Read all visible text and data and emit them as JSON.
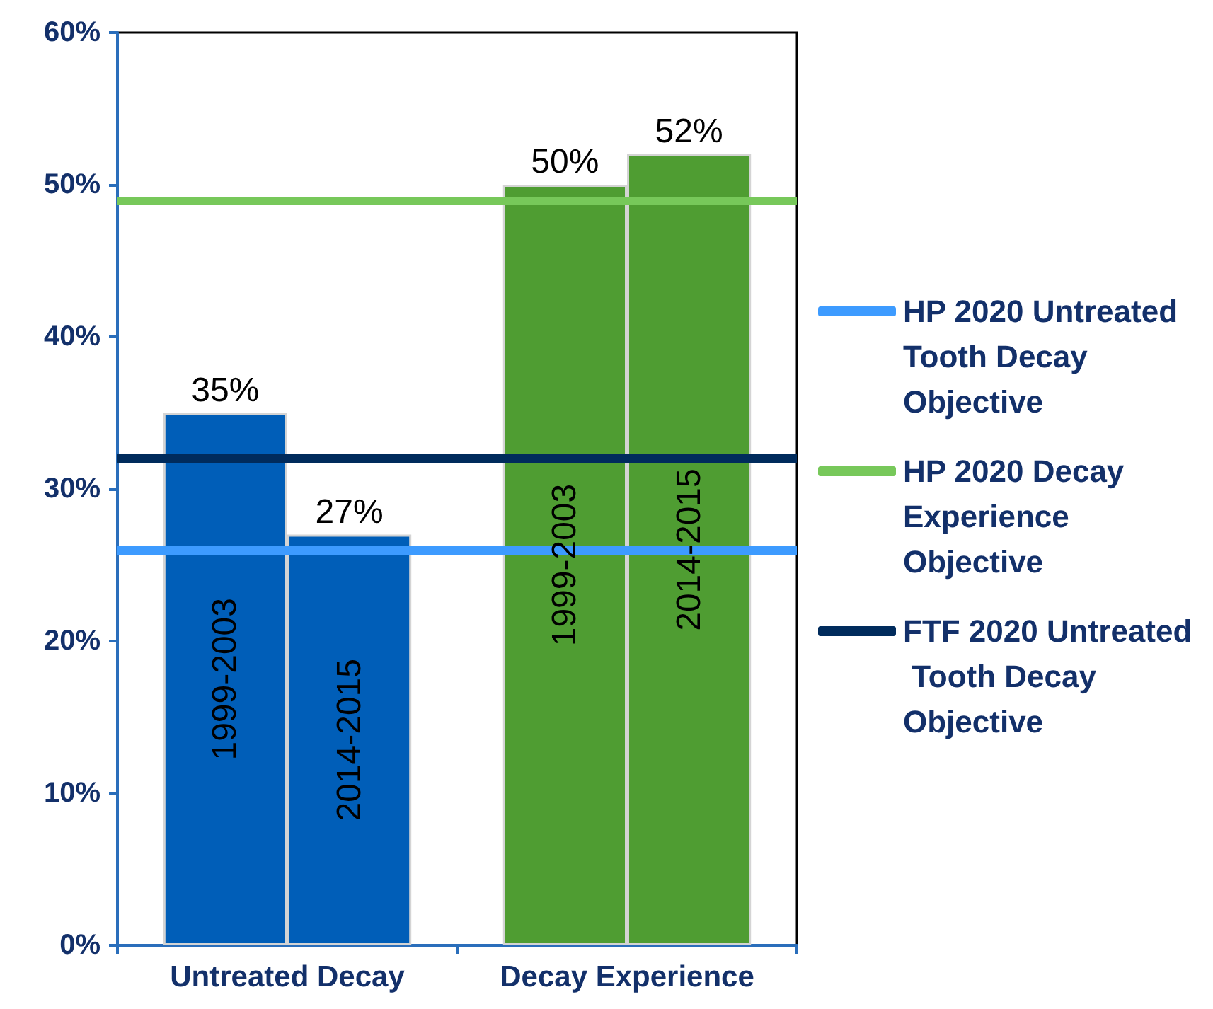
{
  "chart_data": {
    "type": "bar",
    "categories": [
      "Untreated Decay",
      "Decay Experience"
    ],
    "series": [
      {
        "name": "1999-2003",
        "colors": [
          "#005eb8",
          "#4f9d32"
        ],
        "values": [
          35,
          50
        ],
        "value_labels": [
          "35%",
          "50%"
        ]
      },
      {
        "name": "2014-2015",
        "colors": [
          "#005eb8",
          "#4f9d32"
        ],
        "values": [
          27,
          52
        ],
        "value_labels": [
          "27%",
          "52%"
        ]
      }
    ],
    "ref_lines": [
      {
        "axis": "y",
        "value": 26,
        "label": "HP 2020 Untreated Tooth Decay Objective",
        "color": "#3d9bff"
      },
      {
        "axis": "y",
        "value": 49,
        "label": "HP 2020 Decay Experience Objective",
        "color": "#77c85a"
      },
      {
        "axis": "y",
        "value": 32,
        "label": "FTF 2020 Untreated Tooth Decay Objective",
        "color": "#002b5c"
      }
    ],
    "ylim": [
      0,
      60
    ],
    "yticks": [
      {
        "value": 0,
        "label": "0%"
      },
      {
        "value": 10,
        "label": "10%"
      },
      {
        "value": 20,
        "label": "20%"
      },
      {
        "value": 30,
        "label": "30%"
      },
      {
        "value": 40,
        "label": "40%"
      },
      {
        "value": 50,
        "label": "50%"
      },
      {
        "value": 60,
        "label": "60%"
      }
    ],
    "grid": false,
    "legend": "right"
  }
}
